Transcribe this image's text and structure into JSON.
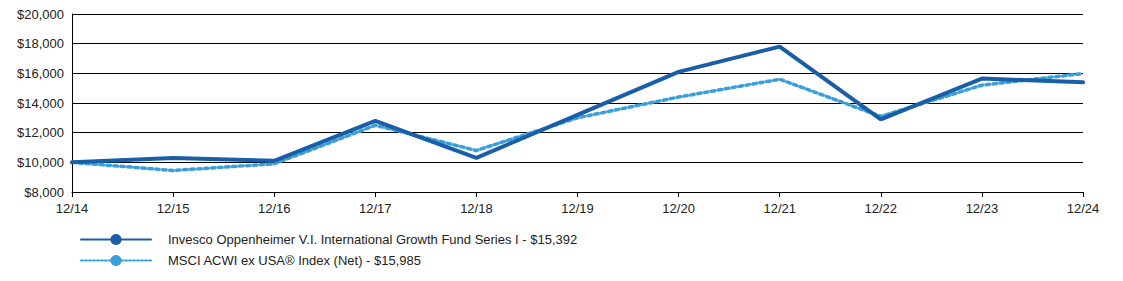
{
  "chart_data": {
    "type": "line",
    "categories": [
      "12/14",
      "12/15",
      "12/16",
      "12/17",
      "12/18",
      "12/19",
      "12/20",
      "12/21",
      "12/22",
      "12/23",
      "12/24"
    ],
    "series": [
      {
        "name": "Invesco Oppenheimer V.I. International Growth Fund Series I - $15,392",
        "color": "#1a5ea8",
        "line_style": "solid",
        "values": [
          10000,
          10300,
          10100,
          12800,
          10300,
          13200,
          16100,
          17800,
          12900,
          15650,
          15392
        ]
      },
      {
        "name": "MSCI ACWI ex USA® Index (Net) - $15,985",
        "color": "#3a9fd8",
        "line_style": "dotted",
        "values": [
          10000,
          9450,
          9900,
          12500,
          10800,
          13000,
          14400,
          15600,
          13100,
          15200,
          15985
        ]
      }
    ],
    "ylim": [
      8000,
      20000
    ],
    "yticks": [
      {
        "value": 8000,
        "label": "$8,000"
      },
      {
        "value": 10000,
        "label": "$10,000"
      },
      {
        "value": 12000,
        "label": "$12,000"
      },
      {
        "value": 14000,
        "label": "$14,000"
      },
      {
        "value": 16000,
        "label": "$16,000"
      },
      {
        "value": 18000,
        "label": "$18,000"
      },
      {
        "value": 20000,
        "label": "$20,000"
      }
    ],
    "grid": true,
    "legend": "lower left"
  }
}
